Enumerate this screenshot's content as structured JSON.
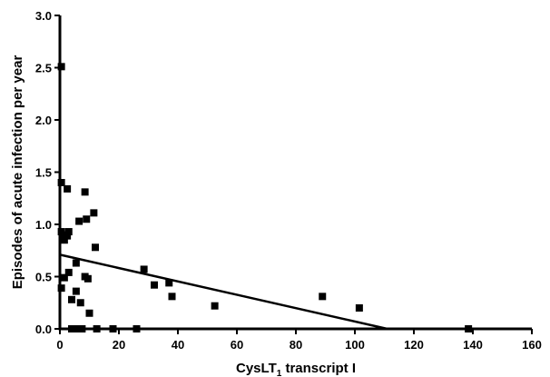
{
  "chart_data": {
    "type": "scatter",
    "xlabel": "CysLT",
    "xlabel_subscript": "1",
    "xlabel_suffix": " transcript I",
    "ylabel": "Episodes of acute infection per year",
    "xlim": [
      0,
      160
    ],
    "ylim": [
      0,
      3.0
    ],
    "x_ticks": [
      "0",
      "20",
      "40",
      "60",
      "80",
      "100",
      "120",
      "140",
      "160"
    ],
    "y_ticks": [
      "0.0",
      "0.5",
      "1.0",
      "1.5",
      "2.0",
      "2.5",
      "3.0"
    ],
    "grid": false,
    "legend": "none",
    "marker": "square",
    "color": "#000000",
    "points": [
      {
        "x": 0.5,
        "y": 2.51
      },
      {
        "x": 0.5,
        "y": 1.4
      },
      {
        "x": 2.5,
        "y": 1.34
      },
      {
        "x": 8.5,
        "y": 1.31
      },
      {
        "x": 11.5,
        "y": 1.11
      },
      {
        "x": 9.0,
        "y": 1.05
      },
      {
        "x": 6.5,
        "y": 1.03
      },
      {
        "x": 0.5,
        "y": 0.93
      },
      {
        "x": 3.0,
        "y": 0.93
      },
      {
        "x": 1.0,
        "y": 0.9
      },
      {
        "x": 2.5,
        "y": 0.89
      },
      {
        "x": 1.5,
        "y": 0.85
      },
      {
        "x": 12.0,
        "y": 0.78
      },
      {
        "x": 5.5,
        "y": 0.63
      },
      {
        "x": 3.0,
        "y": 0.54
      },
      {
        "x": 1.5,
        "y": 0.49
      },
      {
        "x": 8.5,
        "y": 0.5
      },
      {
        "x": 9.5,
        "y": 0.48
      },
      {
        "x": 0.5,
        "y": 0.39
      },
      {
        "x": 5.5,
        "y": 0.36
      },
      {
        "x": 4.0,
        "y": 0.28
      },
      {
        "x": 7.0,
        "y": 0.25
      },
      {
        "x": 10.0,
        "y": 0.15
      },
      {
        "x": 4.0,
        "y": 0.0
      },
      {
        "x": 5.5,
        "y": 0.0
      },
      {
        "x": 7.5,
        "y": 0.0
      },
      {
        "x": 12.5,
        "y": 0.0
      },
      {
        "x": 18.0,
        "y": 0.0
      },
      {
        "x": 26.0,
        "y": 0.0
      },
      {
        "x": 28.5,
        "y": 0.57
      },
      {
        "x": 32.0,
        "y": 0.42
      },
      {
        "x": 37.0,
        "y": 0.44
      },
      {
        "x": 38.0,
        "y": 0.31
      },
      {
        "x": 52.5,
        "y": 0.22
      },
      {
        "x": 89.0,
        "y": 0.31
      },
      {
        "x": 101.5,
        "y": 0.2
      },
      {
        "x": 138.5,
        "y": 0.0
      }
    ],
    "fit_line": {
      "x": [
        0,
        111
      ],
      "y": [
        0.71,
        0.0
      ]
    }
  }
}
